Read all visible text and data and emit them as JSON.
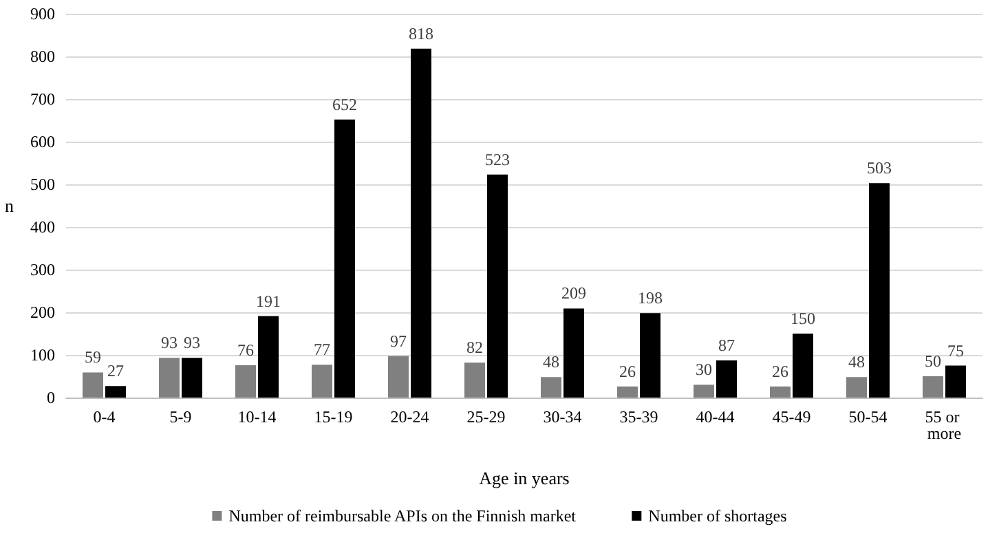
{
  "chart_data": {
    "type": "bar",
    "xlabel": "Age in years",
    "ylabel": "n",
    "categories": [
      "0-4",
      "5-9",
      "10-14",
      "15-19",
      "20-24",
      "25-29",
      "30-34",
      "35-39",
      "40-44",
      "45-49",
      "50-54",
      "55 or more"
    ],
    "series": [
      {
        "name": "Number of reimbursable APIs on the Finnish market",
        "color": "#808080",
        "values": [
          59,
          93,
          76,
          77,
          97,
          82,
          48,
          26,
          30,
          26,
          48,
          50
        ]
      },
      {
        "name": "Number of shortages",
        "color": "#000000",
        "values": [
          27,
          93,
          191,
          652,
          818,
          523,
          209,
          198,
          87,
          150,
          503,
          75
        ]
      }
    ],
    "ylim": [
      0,
      900
    ],
    "yticks": [
      0,
      100,
      200,
      300,
      400,
      500,
      600,
      700,
      800,
      900
    ],
    "grid": "y",
    "legend": "bottom",
    "data_labels": true
  }
}
